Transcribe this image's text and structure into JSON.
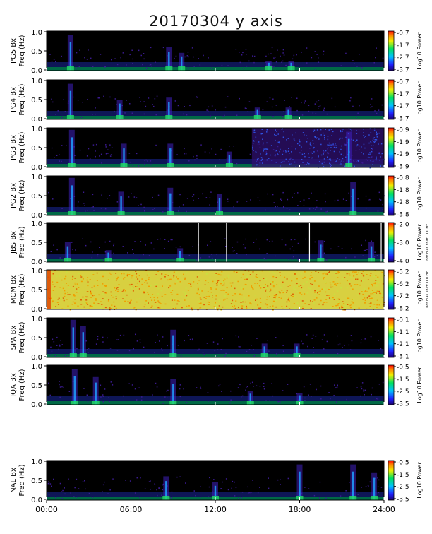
{
  "title": "20170304 y axis",
  "chart_data": {
    "type": "heatmap",
    "title": "20170304 y axis",
    "x_axis": {
      "range_hours": [
        0,
        24
      ],
      "tick_labels": [
        "00:00",
        "06:00",
        "12:00",
        "18:00",
        "24:00"
      ]
    },
    "y_axis": {
      "label": "Freq (Hz)",
      "range": [
        0.0,
        1.0
      ],
      "tick_labels": [
        "0.0",
        "0.5",
        "1.0"
      ]
    },
    "colorbar_label": "Log10 Power",
    "panels": [
      {
        "station": "PG5 Bx",
        "ylabel": "PG5 Bx",
        "freq_label": "Freq (Hz)",
        "cb_ticks": [
          "-0.7",
          "-1.7",
          "-2.7",
          "-3.7"
        ],
        "cb_note": "",
        "bursts": [
          [
            1.7,
            0.9
          ],
          [
            8.7,
            0.6
          ],
          [
            9.6,
            0.45
          ],
          [
            15.8,
            0.25
          ],
          [
            17.4,
            0.25
          ]
        ],
        "bg": "dark"
      },
      {
        "station": "PG4 Bx",
        "ylabel": "PG4 Bx",
        "freq_label": "Freq (Hz)",
        "cb_ticks": [
          "-0.7",
          "-1.7",
          "-2.7",
          "-3.7"
        ],
        "cb_note": "",
        "bursts": [
          [
            1.7,
            0.9
          ],
          [
            5.2,
            0.5
          ],
          [
            8.7,
            0.55
          ],
          [
            15.0,
            0.3
          ],
          [
            17.2,
            0.3
          ]
        ],
        "bg": "dark"
      },
      {
        "station": "PG3 Bx",
        "ylabel": "PG3 Bx",
        "freq_label": "Freq (Hz)",
        "cb_ticks": [
          "-0.9",
          "-1.9",
          "-2.9",
          "-3.9"
        ],
        "cb_note": "",
        "bursts": [
          [
            1.8,
            0.95
          ],
          [
            5.5,
            0.6
          ],
          [
            8.8,
            0.6
          ],
          [
            13.0,
            0.4
          ],
          [
            21.5,
            0.9
          ]
        ],
        "bg": "dark-high-right"
      },
      {
        "station": "PG2 Bx",
        "ylabel": "PG2 Bx",
        "freq_label": "Freq (Hz)",
        "cb_ticks": [
          "-0.8",
          "-1.8",
          "-2.8",
          "-3.8"
        ],
        "cb_note": "",
        "bursts": [
          [
            1.8,
            0.95
          ],
          [
            5.3,
            0.6
          ],
          [
            8.8,
            0.7
          ],
          [
            12.3,
            0.55
          ],
          [
            21.8,
            0.85
          ]
        ],
        "bg": "dark"
      },
      {
        "station": "JBS Bx",
        "ylabel": "JBS Bx",
        "freq_label": "Freq (Hz)",
        "cb_ticks": [
          "-2.0",
          "-3.0",
          "-4.0"
        ],
        "cb_note": "not bias shift: 0.0 Hz",
        "bursts": [
          [
            1.5,
            0.5
          ],
          [
            4.4,
            0.3
          ],
          [
            9.5,
            0.35
          ],
          [
            19.5,
            0.55
          ],
          [
            23.1,
            0.5
          ]
        ],
        "bg": "dark",
        "gaps": [
          10.8,
          12.8,
          18.7,
          23.8
        ]
      },
      {
        "station": "MCM Bx",
        "ylabel": "MCM Bx",
        "freq_label": "Freq (Hz)",
        "cb_ticks": [
          "-5.2",
          "-6.2",
          "-7.2",
          "-8.2"
        ],
        "cb_note": "not bias shift: 0.0 Hz",
        "bursts": [],
        "bg": "saturated"
      },
      {
        "station": "SPA Bx",
        "ylabel": "SPA Bx",
        "freq_label": "Freq (Hz)",
        "cb_ticks": [
          "-0.1",
          "-1.1",
          "-2.1",
          "-3.1"
        ],
        "cb_note": "",
        "bursts": [
          [
            1.9,
            0.95
          ],
          [
            2.6,
            0.8
          ],
          [
            9.0,
            0.7
          ],
          [
            15.5,
            0.35
          ],
          [
            17.8,
            0.35
          ]
        ],
        "bg": "dark"
      },
      {
        "station": "IQA Bx",
        "ylabel": "IQA Bx",
        "freq_label": "Freq (Hz)",
        "cb_ticks": [
          "-0.5",
          "-1.5",
          "-2.5",
          "-3.5"
        ],
        "cb_note": "",
        "bursts": [
          [
            2.0,
            0.9
          ],
          [
            3.5,
            0.7
          ],
          [
            9.0,
            0.65
          ],
          [
            14.5,
            0.35
          ],
          [
            18.0,
            0.3
          ]
        ],
        "bg": "dark"
      },
      {
        "station": "NAL Bx",
        "ylabel": "NAL Bx",
        "freq_label": "Freq (Hz)",
        "cb_ticks": [
          "-0.5",
          "-1.5",
          "-2.5",
          "-3.5"
        ],
        "cb_note": "",
        "bursts": [
          [
            8.5,
            0.6
          ],
          [
            12.0,
            0.45
          ],
          [
            18.0,
            0.9
          ],
          [
            21.8,
            0.9
          ],
          [
            23.3,
            0.7
          ]
        ],
        "bg": "dark"
      }
    ]
  }
}
